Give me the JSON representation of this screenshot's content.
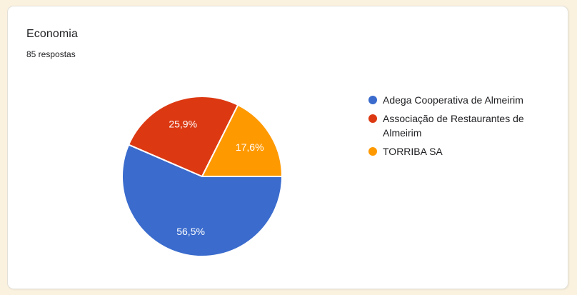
{
  "page": {
    "background_color": "#FAF1DE"
  },
  "card": {
    "title": "Economia",
    "subtitle": "85 respostas"
  },
  "chart_data": {
    "type": "pie",
    "title": "Economia",
    "subtitle": "85 respostas",
    "legend_position": "right",
    "start_angle_deg": 0,
    "direction": "clockwise",
    "separator_color": "#FFFFFF",
    "label_color": "#FFFFFF",
    "slices": [
      {
        "label": "Adega Cooperativa de Almeirim",
        "percent": 56.5,
        "display_percent": "56,5%",
        "color": "#3A6BCD"
      },
      {
        "label": "Associação de Restaurantes de Almeirim",
        "percent": 25.9,
        "display_percent": "25,9%",
        "color": "#DC3912"
      },
      {
        "label": "TORRIBA SA",
        "percent": 17.6,
        "display_percent": "17,6%",
        "color": "#FF9900"
      }
    ]
  }
}
